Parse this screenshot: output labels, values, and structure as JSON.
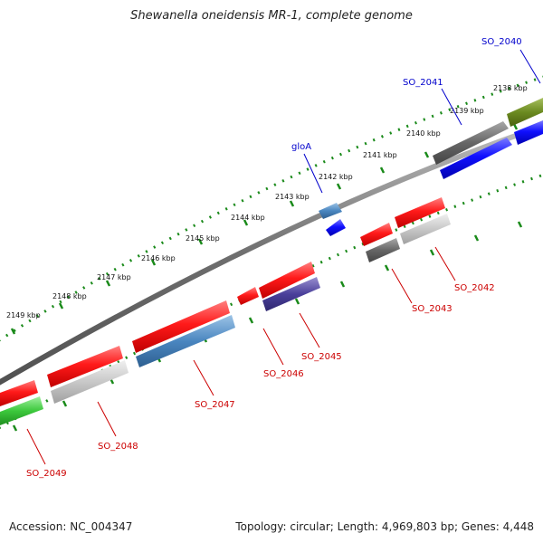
{
  "title": "Shewanella oneidensis MR-1, complete genome",
  "footer": {
    "accession": "Accession: NC_004347",
    "topology": "Topology: circular; Length: 4,969,803 bp; Genes: 4,448"
  },
  "colors": {
    "label_forward": "#0000cc",
    "label_reverse": "#cc0000",
    "ticks": "#1a8a1a",
    "backbone": "#7a7a7a"
  },
  "scale_labels": [
    "2138 kbp",
    "2139 kbp",
    "2140 kbp",
    "2141 kbp",
    "2142 kbp",
    "2143 kbp",
    "2144 kbp",
    "2145 kbp",
    "2146 kbp",
    "2147 kbp",
    "2148 kbp",
    "2149 kbp"
  ],
  "gene_labels": [
    "SO_2040",
    "SO_2041",
    "gloA",
    "SO_2042",
    "SO_2043",
    "SO_2045",
    "SO_2046",
    "SO_2047",
    "SO_2048",
    "SO_2049"
  ]
}
